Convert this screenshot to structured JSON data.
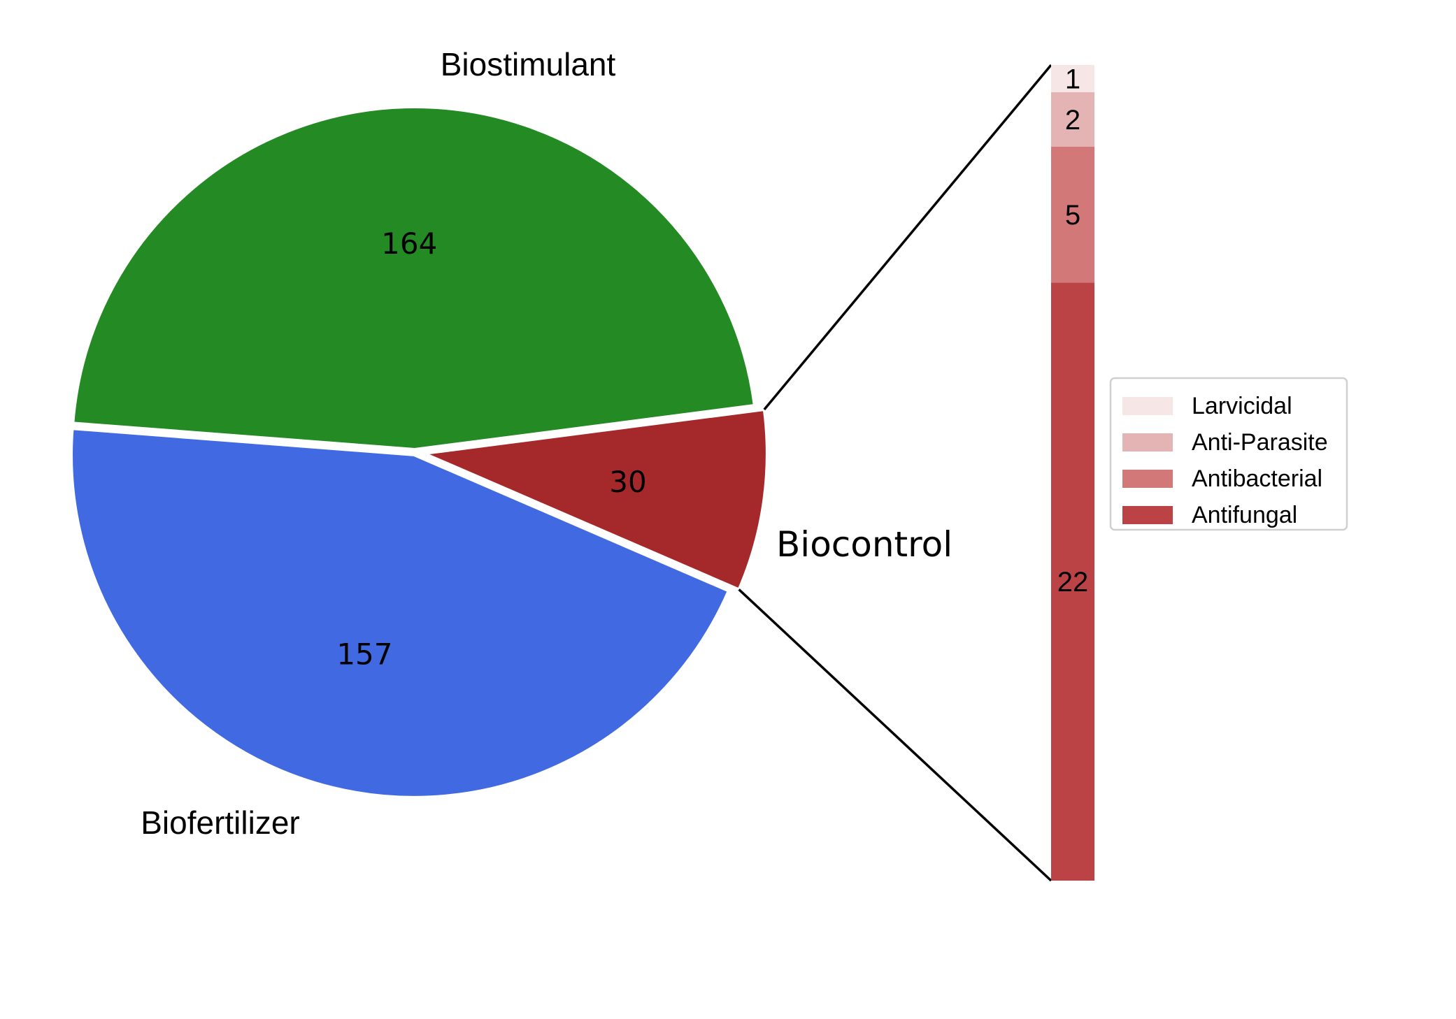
{
  "chart_data": [
    {
      "type": "pie",
      "title": "",
      "slices": [
        {
          "label": "Biostimulant",
          "value": 164,
          "color": "#248a24"
        },
        {
          "label": "Biofertilizer",
          "value": 157,
          "color": "#4169e1"
        },
        {
          "label": "Biocontrol",
          "value": 30,
          "color": "#a5282a"
        }
      ],
      "exploded": "Biocontrol"
    },
    {
      "type": "bar",
      "stacked": true,
      "breakdown_of": "Biocontrol",
      "categories": [
        "Antifungal",
        "Antibacterial",
        "Anti-Parasite",
        "Larvicidal"
      ],
      "values": [
        22,
        5,
        2,
        1
      ],
      "colors": [
        "#bc4345",
        "#d27878",
        "#e4b3b3",
        "#f6e6e6"
      ],
      "legend_order": [
        "Larvicidal",
        "Anti-Parasite",
        "Antibacterial",
        "Antifungal"
      ],
      "legend_position": "right"
    }
  ]
}
